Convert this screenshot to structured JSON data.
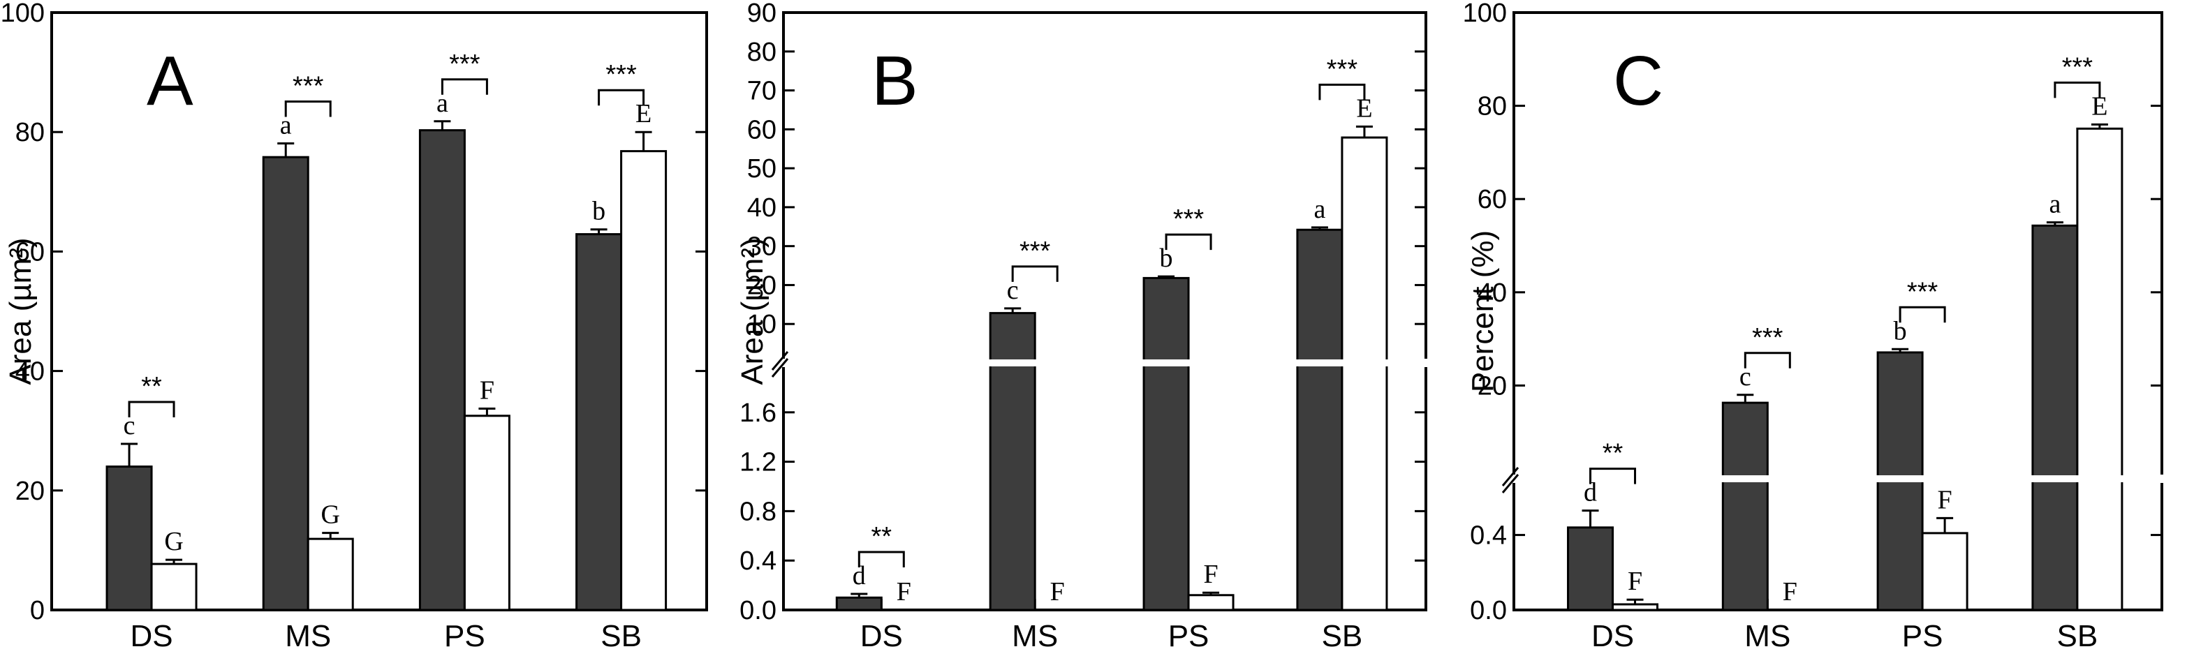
{
  "chart_data": [
    {
      "panel": "A",
      "type": "bar",
      "ylabel": "Area (µm²)",
      "ylim": [
        0,
        100
      ],
      "yticks": [
        0,
        20,
        40,
        60,
        80,
        100
      ],
      "categories": [
        "DS",
        "MS",
        "PS",
        "SB"
      ],
      "series": [
        {
          "name": "dark",
          "color": "#3d3d3d",
          "values": [
            24,
            75.8,
            80.3,
            62.9
          ],
          "errors": [
            3.8,
            2.3,
            1.5,
            0.8
          ],
          "labels": [
            "c",
            "a",
            "a",
            "b"
          ]
        },
        {
          "name": "white",
          "color": "#ffffff",
          "values": [
            7.7,
            11.9,
            32.5,
            76.8
          ],
          "errors": [
            0.7,
            1.0,
            1.2,
            3.2
          ],
          "labels": [
            "G",
            "G",
            "F",
            "E"
          ]
        }
      ],
      "significance": [
        "**",
        "***",
        "***",
        "***"
      ]
    },
    {
      "panel": "B",
      "type": "bar",
      "ylabel": "Area (µm²)",
      "broken_axis": {
        "lower_range": [
          0,
          2.0
        ],
        "upper_range": [
          0,
          90
        ]
      },
      "yticks_lower": [
        "0.0",
        "0.4",
        "0.8",
        "1.2",
        "1.6"
      ],
      "yticks_upper": [
        "10",
        "20",
        "30",
        "40",
        "50",
        "60",
        "70",
        "80",
        "90"
      ],
      "categories": [
        "DS",
        "MS",
        "PS",
        "SB"
      ],
      "series": [
        {
          "name": "dark",
          "color": "#3d3d3d",
          "values": [
            0.1,
            12.8,
            21.8,
            34.2
          ],
          "errors": [
            0.03,
            1.2,
            0.4,
            0.6
          ],
          "labels": [
            "d",
            "c",
            "b",
            "a"
          ]
        },
        {
          "name": "white",
          "color": "#ffffff",
          "values": [
            0.0,
            0.0,
            0.12,
            57.9
          ],
          "errors": [
            0.0,
            0.0,
            0.02,
            2.8
          ],
          "labels": [
            "F",
            "F",
            "F",
            "E"
          ]
        }
      ],
      "significance": [
        "**",
        "***",
        "***",
        "***"
      ]
    },
    {
      "panel": "C",
      "type": "bar",
      "ylabel": "Percent (%)",
      "broken_axis": {
        "lower_range": [
          0,
          0.7
        ],
        "upper_range": [
          0,
          100
        ]
      },
      "yticks_lower": [
        "0.0",
        "0.4"
      ],
      "yticks_upper": [
        "20",
        "40",
        "60",
        "80",
        "100"
      ],
      "categories": [
        "DS",
        "MS",
        "PS",
        "SB"
      ],
      "series": [
        {
          "name": "dark",
          "color": "#3d3d3d",
          "values": [
            0.44,
            16.3,
            27.1,
            54.3
          ],
          "errors": [
            0.09,
            1.7,
            0.7,
            0.7
          ],
          "labels": [
            "d",
            "c",
            "b",
            "a"
          ]
        },
        {
          "name": "white",
          "color": "#ffffff",
          "values": [
            0.03,
            0.0,
            0.41,
            75.1
          ],
          "errors": [
            0.025,
            0.0,
            0.08,
            0.9
          ],
          "labels": [
            "F",
            "F",
            "F",
            "E"
          ]
        }
      ],
      "significance": [
        "**",
        "***",
        "***",
        "***"
      ]
    }
  ]
}
